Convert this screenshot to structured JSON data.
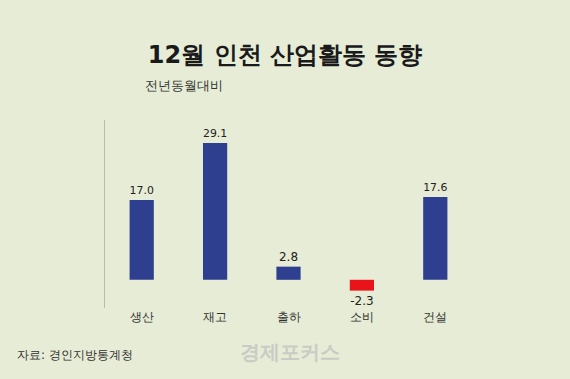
{
  "chart_data": {
    "type": "bar",
    "title": "12월 인천 산업활동 동향",
    "subtitle": "전년동월대비",
    "source": "자료: 경인지방통계청",
    "watermark": "경제포커스",
    "categories": [
      "생산",
      "재고",
      "출하",
      "소비",
      "건설"
    ],
    "values": [
      17.0,
      29.1,
      2.8,
      -2.3,
      17.6
    ],
    "value_labels": [
      "17.0",
      "29.1",
      "2.8",
      "-2.3",
      "17.6"
    ],
    "colors": [
      "#2e3f8f",
      "#2e3f8f",
      "#2e3f8f",
      "#e8131b",
      "#2e3f8f"
    ],
    "ylim": [
      -6,
      34
    ],
    "yticks": [],
    "grid": false,
    "data_labels": true,
    "tick_labels": "x"
  }
}
